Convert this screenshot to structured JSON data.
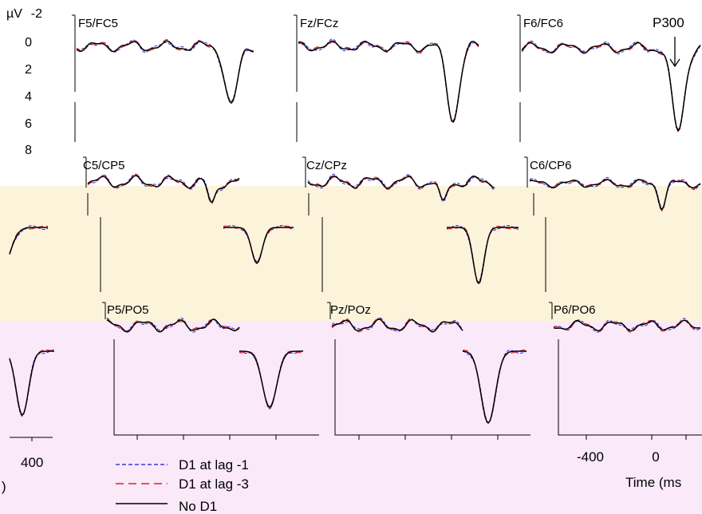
{
  "figure": {
    "y_unit": "µV",
    "time_label": "Time (ms",
    "left_time_label": ")",
    "peak_label": "P300",
    "left_tick": "400",
    "bottom_ticks": [
      "-400",
      "0"
    ]
  },
  "legend": [
    {
      "label": "D1 at lag -1",
      "color": "#3b3bd6",
      "dash": "5,3"
    },
    {
      "label": "D1 at lag -3",
      "color": "#e02020",
      "dash": "10,6"
    },
    {
      "label": "No D1",
      "color": "#000000",
      "dash": ""
    }
  ],
  "colors": {
    "band_central": "#fbf3da",
    "band_parietal": "#f9e9f9",
    "series_lag1": "#3b3bd6",
    "series_lag3": "#e02020",
    "series_nod1": "#000000"
  },
  "chart_data": {
    "type": "line",
    "xlabel": "Time (ms",
    "ylabel": "µV",
    "y_ticks": [
      "-2",
      "0",
      "2",
      "4",
      "6",
      "8"
    ],
    "x_ticks": [
      "-400",
      "0"
    ],
    "annotation": "P300",
    "series_names": [
      "D1 at lag -1",
      "D1 at lag -3",
      "No D1"
    ],
    "panels": [
      {
        "label": "F5/FC5"
      },
      {
        "label": "Fz/FCz"
      },
      {
        "label": "F6/FC6"
      },
      {
        "label": "C5/CP5"
      },
      {
        "label": "Cz/CPz"
      },
      {
        "label": "C6/CP6"
      },
      {
        "label": "P5/PO5"
      },
      {
        "label": "Pz/POz"
      },
      {
        "label": "P6/PO6"
      }
    ]
  }
}
